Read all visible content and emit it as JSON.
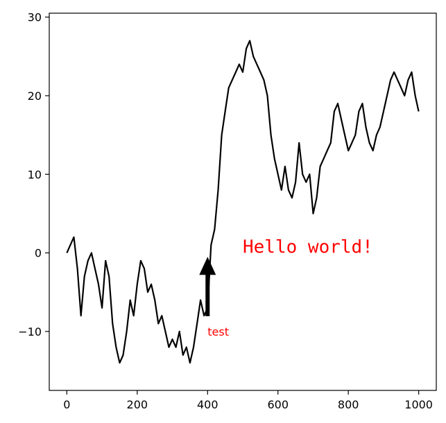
{
  "chart_data": {
    "type": "line",
    "title": "",
    "xlabel": "",
    "ylabel": "",
    "xlim": [
      -50,
      1050
    ],
    "ylim": [
      -17.5,
      30.5
    ],
    "xticks": [
      0,
      200,
      400,
      600,
      800,
      1000
    ],
    "xtick_labels": [
      "0",
      "200",
      "400",
      "600",
      "800",
      "1000"
    ],
    "yticks": [
      30,
      20,
      10,
      0,
      -10
    ],
    "ytick_labels": [
      "30",
      "20",
      "10",
      "0",
      "−10"
    ],
    "grid": false,
    "series": [
      {
        "color": "#000000",
        "x": [
          0,
          10,
          20,
          30,
          40,
          50,
          60,
          70,
          80,
          90,
          100,
          110,
          120,
          130,
          140,
          150,
          160,
          170,
          180,
          190,
          200,
          210,
          220,
          230,
          240,
          250,
          260,
          270,
          280,
          290,
          300,
          310,
          320,
          330,
          340,
          350,
          360,
          370,
          380,
          390,
          400,
          410,
          420,
          430,
          440,
          450,
          460,
          470,
          480,
          490,
          500,
          510,
          520,
          530,
          540,
          550,
          560,
          570,
          580,
          590,
          600,
          610,
          620,
          630,
          640,
          650,
          660,
          670,
          680,
          690,
          700,
          710,
          720,
          730,
          740,
          750,
          760,
          770,
          780,
          790,
          800,
          810,
          820,
          830,
          840,
          850,
          860,
          870,
          880,
          890,
          900,
          910,
          920,
          930,
          940,
          950,
          960,
          970,
          980,
          990,
          1000
        ],
        "y": [
          0,
          1,
          2,
          -2,
          -8,
          -3,
          -1,
          0,
          -2,
          -4,
          -7,
          -1,
          -3,
          -9,
          -12,
          -14,
          -13,
          -10,
          -6,
          -8,
          -4,
          -1,
          -2,
          -5,
          -4,
          -6,
          -9,
          -8,
          -10,
          -12,
          -11,
          -12,
          -10,
          -13,
          -12,
          -14,
          -12,
          -9,
          -6,
          -8,
          -7,
          1,
          3,
          8,
          15,
          18,
          21,
          22,
          23,
          24,
          23,
          26,
          27,
          25,
          24,
          23,
          22,
          20,
          15,
          12,
          10,
          8,
          11,
          8,
          7,
          9,
          14,
          10,
          9,
          10,
          5,
          7,
          11,
          12,
          13,
          14,
          18,
          19,
          17,
          15,
          13,
          14,
          15,
          18,
          19,
          16,
          14,
          13,
          15,
          16,
          18,
          20,
          22,
          23,
          22,
          21,
          20,
          22,
          23,
          20,
          18
        ]
      }
    ],
    "annotations": [
      {
        "text": "Hello world!",
        "x": 500,
        "y": 0,
        "color": "#ff0000",
        "font": "monospace"
      },
      {
        "text": "test",
        "x": 400,
        "y": -10,
        "color": "#ff0000",
        "font": "sans",
        "arrow_to": [
          400,
          -0.5
        ]
      }
    ]
  }
}
